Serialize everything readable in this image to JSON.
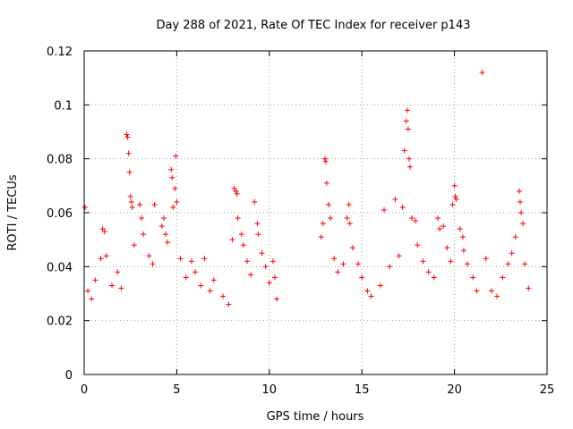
{
  "chart_data": {
    "type": "scatter",
    "title": "Day 288 of 2021, Rate Of TEC Index for receiver p143",
    "xlabel": "GPS time / hours",
    "ylabel": "ROTI / TECUs",
    "xlim": [
      0,
      25
    ],
    "ylim": [
      0,
      0.12
    ],
    "x_ticks": [
      "0",
      "5",
      "10",
      "15",
      "20",
      "25"
    ],
    "y_ticks": [
      "0",
      "0.02",
      "0.04",
      "0.06",
      "0.08",
      "0.1",
      "0.12"
    ],
    "grid": true,
    "marker": "plus",
    "color": "#ff0000",
    "series": [
      {
        "points": [
          [
            0.05,
            0.062
          ],
          [
            0.2,
            0.031
          ],
          [
            0.4,
            0.028
          ],
          [
            0.6,
            0.035
          ],
          [
            0.9,
            0.043
          ],
          [
            1.0,
            0.054
          ],
          [
            1.1,
            0.053
          ],
          [
            1.2,
            0.044
          ],
          [
            1.5,
            0.033
          ],
          [
            1.8,
            0.038
          ],
          [
            2.0,
            0.032
          ],
          [
            2.3,
            0.089
          ],
          [
            2.35,
            0.088
          ],
          [
            2.4,
            0.082
          ],
          [
            2.45,
            0.075
          ],
          [
            2.5,
            0.066
          ],
          [
            2.55,
            0.064
          ],
          [
            2.6,
            0.062
          ],
          [
            2.7,
            0.048
          ],
          [
            3.0,
            0.063
          ],
          [
            3.1,
            0.058
          ],
          [
            3.2,
            0.052
          ],
          [
            3.5,
            0.044
          ],
          [
            3.7,
            0.041
          ],
          [
            3.8,
            0.063
          ],
          [
            4.2,
            0.055
          ],
          [
            4.3,
            0.058
          ],
          [
            4.4,
            0.052
          ],
          [
            4.5,
            0.049
          ],
          [
            4.7,
            0.076
          ],
          [
            4.75,
            0.073
          ],
          [
            4.8,
            0.062
          ],
          [
            4.9,
            0.069
          ],
          [
            4.95,
            0.081
          ],
          [
            5.0,
            0.064
          ],
          [
            5.2,
            0.043
          ],
          [
            5.5,
            0.036
          ],
          [
            5.8,
            0.042
          ],
          [
            6.0,
            0.038
          ],
          [
            6.3,
            0.033
          ],
          [
            6.5,
            0.043
          ],
          [
            6.8,
            0.031
          ],
          [
            7.0,
            0.035
          ],
          [
            7.5,
            0.029
          ],
          [
            7.8,
            0.026
          ],
          [
            8.0,
            0.05
          ],
          [
            8.1,
            0.069
          ],
          [
            8.2,
            0.068
          ],
          [
            8.25,
            0.067
          ],
          [
            8.3,
            0.058
          ],
          [
            8.5,
            0.052
          ],
          [
            8.6,
            0.048
          ],
          [
            8.8,
            0.042
          ],
          [
            9.0,
            0.037
          ],
          [
            9.2,
            0.064
          ],
          [
            9.35,
            0.056
          ],
          [
            9.4,
            0.052
          ],
          [
            9.6,
            0.045
          ],
          [
            9.8,
            0.04
          ],
          [
            10.0,
            0.034
          ],
          [
            10.2,
            0.042
          ],
          [
            10.3,
            0.036
          ],
          [
            10.4,
            0.028
          ],
          [
            12.8,
            0.051
          ],
          [
            12.9,
            0.056
          ],
          [
            13.0,
            0.08
          ],
          [
            13.05,
            0.079
          ],
          [
            13.1,
            0.071
          ],
          [
            13.2,
            0.063
          ],
          [
            13.3,
            0.058
          ],
          [
            13.5,
            0.043
          ],
          [
            13.7,
            0.038
          ],
          [
            14.0,
            0.041
          ],
          [
            14.2,
            0.058
          ],
          [
            14.3,
            0.063
          ],
          [
            14.35,
            0.056
          ],
          [
            14.5,
            0.047
          ],
          [
            14.8,
            0.041
          ],
          [
            15.0,
            0.036
          ],
          [
            15.3,
            0.031
          ],
          [
            15.5,
            0.029
          ],
          [
            16.0,
            0.033
          ],
          [
            16.2,
            0.061
          ],
          [
            16.5,
            0.04
          ],
          [
            16.8,
            0.065
          ],
          [
            17.0,
            0.044
          ],
          [
            17.2,
            0.062
          ],
          [
            17.3,
            0.083
          ],
          [
            17.4,
            0.094
          ],
          [
            17.45,
            0.098
          ],
          [
            17.5,
            0.091
          ],
          [
            17.55,
            0.08
          ],
          [
            17.6,
            0.077
          ],
          [
            17.7,
            0.058
          ],
          [
            17.9,
            0.057
          ],
          [
            18.0,
            0.048
          ],
          [
            18.3,
            0.042
          ],
          [
            18.6,
            0.038
          ],
          [
            18.9,
            0.036
          ],
          [
            19.1,
            0.058
          ],
          [
            19.2,
            0.054
          ],
          [
            19.4,
            0.055
          ],
          [
            19.6,
            0.047
          ],
          [
            19.8,
            0.042
          ],
          [
            19.9,
            0.063
          ],
          [
            20.0,
            0.07
          ],
          [
            20.05,
            0.066
          ],
          [
            20.1,
            0.065
          ],
          [
            20.3,
            0.054
          ],
          [
            20.45,
            0.051
          ],
          [
            20.5,
            0.046
          ],
          [
            20.7,
            0.041
          ],
          [
            21.0,
            0.036
          ],
          [
            21.2,
            0.031
          ],
          [
            21.5,
            0.112
          ],
          [
            21.7,
            0.043
          ],
          [
            22.0,
            0.031
          ],
          [
            22.3,
            0.029
          ],
          [
            22.6,
            0.036
          ],
          [
            22.9,
            0.041
          ],
          [
            23.1,
            0.045
          ],
          [
            23.3,
            0.051
          ],
          [
            23.5,
            0.068
          ],
          [
            23.55,
            0.064
          ],
          [
            23.6,
            0.06
          ],
          [
            23.7,
            0.056
          ],
          [
            23.8,
            0.041
          ],
          [
            24.0,
            0.032
          ]
        ]
      }
    ]
  }
}
